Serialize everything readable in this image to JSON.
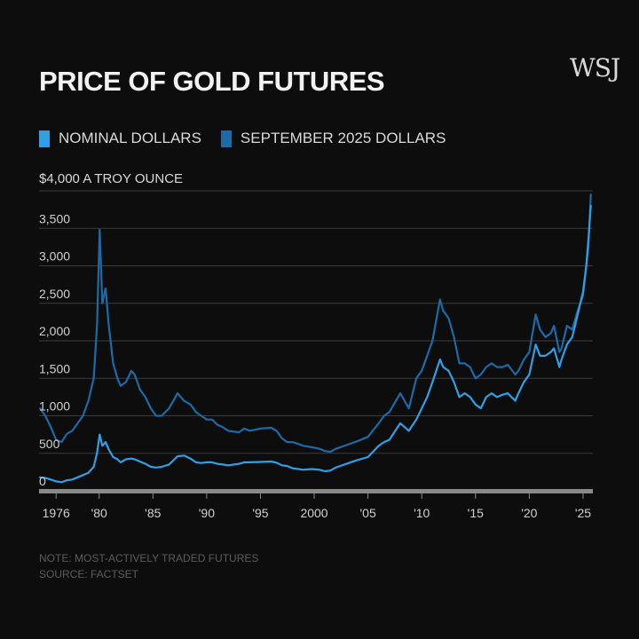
{
  "logo": "WSJ",
  "chart_data": {
    "type": "line",
    "title": "PRICE OF GOLD FUTURES",
    "unit_label": "$4,000 A TROY OUNCE",
    "ylim": [
      0,
      4000
    ],
    "yticks": [
      0,
      500,
      1000,
      1500,
      2000,
      2500,
      3000,
      3500
    ],
    "ytick_labels": [
      "0",
      "500",
      "1,000",
      "1,500",
      "2,000",
      "2,500",
      "3,000",
      "3,500"
    ],
    "xlim": [
      1974.0,
      2026.0
    ],
    "xticks": [
      1976,
      1980,
      1985,
      1990,
      1995,
      2000,
      2005,
      2010,
      2015,
      2020,
      2025
    ],
    "xtick_labels": [
      "1976",
      "'80",
      "'85",
      "'90",
      "'95",
      "2000",
      "'05",
      "'10",
      "'15",
      "'20",
      "'25"
    ],
    "series": [
      {
        "name": "SEPTEMBER 2025 DOLLARS",
        "color": "#1c6aa6",
        "x": [
          1974.5,
          1975.0,
          1975.5,
          1976.0,
          1976.5,
          1977.0,
          1977.5,
          1978.0,
          1978.5,
          1979.0,
          1979.5,
          1979.8,
          1980.05,
          1980.3,
          1980.6,
          1980.9,
          1981.3,
          1981.7,
          1982.0,
          1982.5,
          1983.0,
          1983.3,
          1983.8,
          1984.3,
          1984.8,
          1985.3,
          1985.8,
          1986.5,
          1987.3,
          1987.9,
          1988.5,
          1989.0,
          1989.5,
          1990.0,
          1990.5,
          1991.0,
          1991.5,
          1992.0,
          1993.0,
          1993.5,
          1994.0,
          1995.0,
          1996.0,
          1996.5,
          1997.0,
          1997.5,
          1998.0,
          1999.0,
          1999.8,
          2000.5,
          2001.0,
          2001.5,
          2002.0,
          2003.0,
          2004.0,
          2005.0,
          2006.0,
          2006.5,
          2007.0,
          2008.0,
          2008.8,
          2009.5,
          2010.0,
          2010.5,
          2011.0,
          2011.7,
          2012.0,
          2012.5,
          2013.0,
          2013.5,
          2014.0,
          2014.5,
          2015.0,
          2015.5,
          2016.0,
          2016.5,
          2017.0,
          2017.5,
          2018.0,
          2018.7,
          2019.0,
          2019.5,
          2020.0,
          2020.6,
          2021.0,
          2021.5,
          2022.0,
          2022.3,
          2022.8,
          2023.0,
          2023.5,
          2024.0,
          2024.5,
          2025.0,
          2025.3,
          2025.5,
          2025.72
        ],
        "y": [
          1100,
          1000,
          850,
          680,
          650,
          760,
          800,
          900,
          1000,
          1200,
          1500,
          2200,
          3480,
          2500,
          2700,
          2200,
          1700,
          1500,
          1400,
          1450,
          1600,
          1550,
          1350,
          1250,
          1100,
          1000,
          1000,
          1100,
          1300,
          1200,
          1150,
          1050,
          1000,
          950,
          950,
          880,
          850,
          800,
          780,
          830,
          800,
          830,
          840,
          800,
          700,
          650,
          650,
          600,
          580,
          560,
          530,
          520,
          560,
          610,
          660,
          720,
          900,
          1000,
          1050,
          1300,
          1100,
          1500,
          1600,
          1800,
          2000,
          2550,
          2400,
          2300,
          2050,
          1700,
          1700,
          1650,
          1500,
          1550,
          1650,
          1700,
          1650,
          1650,
          1680,
          1550,
          1600,
          1750,
          1850,
          2350,
          2150,
          2050,
          2100,
          2200,
          1850,
          1900,
          2200,
          2150,
          2400,
          2600,
          3000,
          3250,
          3950
        ]
      },
      {
        "name": "NOMINAL DOLLARS",
        "color": "#2f9fe6",
        "x": [
          1974.5,
          1975.0,
          1975.5,
          1976.0,
          1976.5,
          1977.0,
          1977.5,
          1978.0,
          1978.5,
          1979.0,
          1979.5,
          1979.8,
          1980.05,
          1980.3,
          1980.6,
          1980.9,
          1981.3,
          1981.7,
          1982.0,
          1982.5,
          1983.0,
          1983.3,
          1983.8,
          1984.3,
          1984.8,
          1985.3,
          1985.8,
          1986.5,
          1987.3,
          1987.9,
          1988.5,
          1989.0,
          1989.5,
          1990.0,
          1990.5,
          1991.0,
          1991.5,
          1992.0,
          1993.0,
          1993.5,
          1994.0,
          1995.0,
          1996.0,
          1996.5,
          1997.0,
          1997.5,
          1998.0,
          1999.0,
          1999.8,
          2000.5,
          2001.0,
          2001.5,
          2002.0,
          2003.0,
          2004.0,
          2005.0,
          2006.0,
          2006.5,
          2007.0,
          2008.0,
          2008.8,
          2009.5,
          2010.0,
          2010.5,
          2011.0,
          2011.7,
          2012.0,
          2012.5,
          2013.0,
          2013.5,
          2014.0,
          2014.5,
          2015.0,
          2015.5,
          2016.0,
          2016.5,
          2017.0,
          2017.5,
          2018.0,
          2018.7,
          2019.0,
          2019.5,
          2020.0,
          2020.6,
          2021.0,
          2021.5,
          2022.0,
          2022.3,
          2022.8,
          2023.0,
          2023.5,
          2024.0,
          2024.5,
          2025.0,
          2025.3,
          2025.5,
          2025.72
        ],
        "y": [
          180,
          170,
          150,
          125,
          115,
          140,
          150,
          180,
          210,
          240,
          320,
          500,
          750,
          600,
          650,
          550,
          450,
          420,
          380,
          420,
          430,
          420,
          390,
          360,
          320,
          310,
          320,
          350,
          460,
          470,
          430,
          380,
          370,
          380,
          380,
          360,
          350,
          340,
          360,
          380,
          380,
          385,
          390,
          375,
          340,
          330,
          300,
          280,
          290,
          280,
          260,
          270,
          310,
          360,
          410,
          450,
          600,
          650,
          680,
          900,
          800,
          950,
          1100,
          1250,
          1450,
          1750,
          1650,
          1600,
          1450,
          1250,
          1300,
          1250,
          1150,
          1100,
          1250,
          1300,
          1250,
          1280,
          1300,
          1200,
          1300,
          1450,
          1550,
          1950,
          1800,
          1800,
          1850,
          1900,
          1650,
          1750,
          1950,
          2050,
          2350,
          2650,
          3000,
          3350,
          3800
        ]
      }
    ],
    "annotations": [
      "NOTE: MOST-ACTIVELY TRADED FUTURES",
      "SOURCE: FACTSET"
    ]
  }
}
